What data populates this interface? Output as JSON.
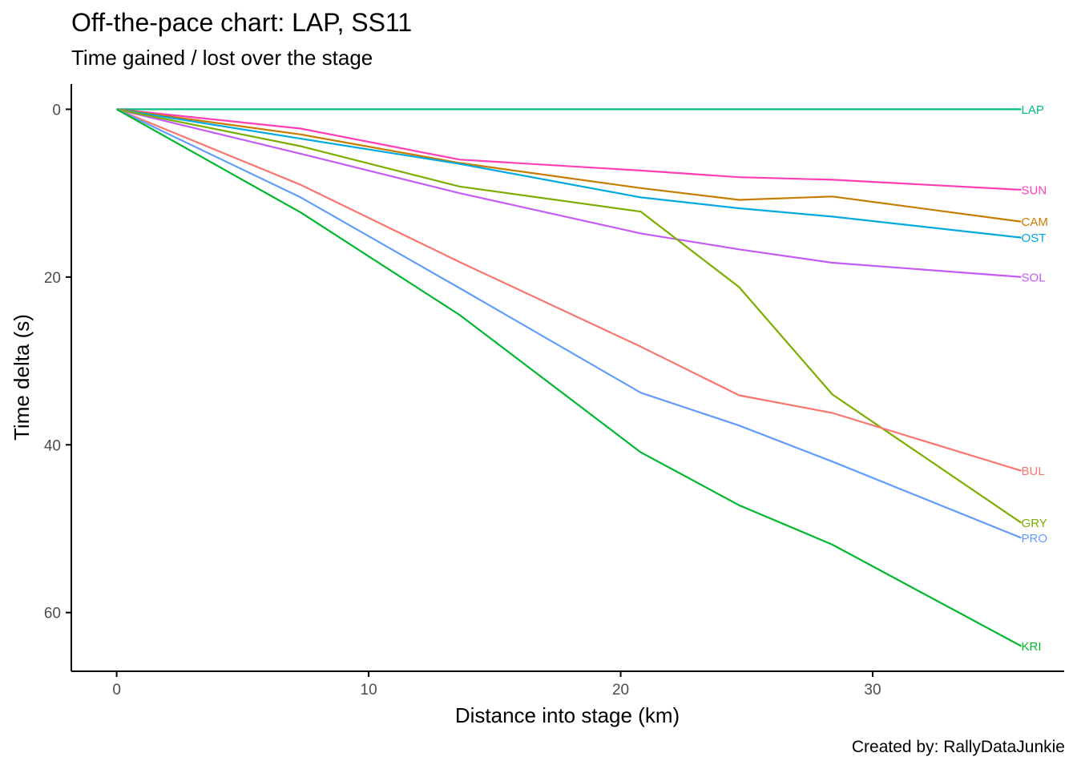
{
  "chart_data": {
    "type": "line",
    "title": "Off-the-pace chart: LAP, SS11",
    "subtitle": "Time gained / lost over the stage",
    "caption": "Created by: RallyDataJunkie",
    "xlabel": "Distance into stage (km)",
    "ylabel": "Time delta (s)",
    "xlim": [
      -1.8,
      37.6
    ],
    "ylim": [
      -3,
      67
    ],
    "y_reversed": true,
    "xticks": [
      0,
      10,
      20,
      30
    ],
    "yticks": [
      0,
      20,
      40,
      60
    ],
    "grid": false,
    "legend": "none",
    "x": [
      0,
      7.3,
      13.6,
      20.8,
      24.7,
      28.4,
      35.9
    ],
    "series": [
      {
        "name": "LAP",
        "color": "#00BF7D",
        "values": [
          0,
          0,
          0,
          0,
          0,
          0,
          0
        ]
      },
      {
        "name": "SUN",
        "color": "#FF3EB5",
        "values": [
          0,
          2.3,
          6.0,
          7.3,
          8.1,
          8.4,
          9.6
        ]
      },
      {
        "name": "CAM",
        "color": "#C77C00",
        "values": [
          0,
          3.0,
          6.4,
          9.4,
          10.8,
          10.4,
          13.4
        ]
      },
      {
        "name": "OST",
        "color": "#00A9DF",
        "values": [
          0,
          3.5,
          6.5,
          10.5,
          11.8,
          12.8,
          15.3
        ]
      },
      {
        "name": "SOL",
        "color": "#C55BF5",
        "values": [
          0,
          5.3,
          10.0,
          14.8,
          16.7,
          18.3,
          20.0
        ]
      },
      {
        "name": "GRY",
        "color": "#7CAE00",
        "values": [
          0,
          4.4,
          9.2,
          12.2,
          21.2,
          34.0,
          49.3
        ]
      },
      {
        "name": "BUL",
        "color": "#F8766D",
        "values": [
          0,
          9.0,
          18.2,
          28.3,
          34.1,
          36.2,
          43.1
        ]
      },
      {
        "name": "PRO",
        "color": "#619CFF",
        "values": [
          0,
          10.5,
          21.3,
          33.8,
          37.7,
          42.0,
          51.1
        ]
      },
      {
        "name": "KRI",
        "color": "#00B72E",
        "values": [
          0,
          12.3,
          24.5,
          40.9,
          47.2,
          51.9,
          64.0
        ]
      }
    ]
  }
}
